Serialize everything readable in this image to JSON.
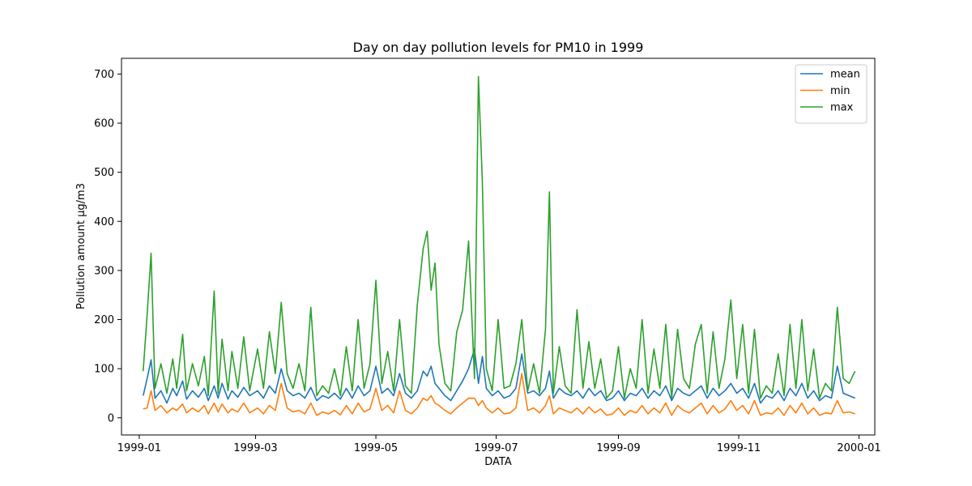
{
  "chart_data": {
    "type": "line",
    "title": "Day on day pollution levels for PM10 in 1999",
    "xlabel": "DATA",
    "ylabel": "Pollution amount µg/m3",
    "x_type": "date",
    "xlim": [
      "1998-12-23",
      "2000-01-09"
    ],
    "ylim": [
      -35,
      732
    ],
    "x_ticks": [
      {
        "date": "1999-01-01",
        "label": "1999-01"
      },
      {
        "date": "1999-03-01",
        "label": "1999-03"
      },
      {
        "date": "1999-05-01",
        "label": "1999-05"
      },
      {
        "date": "1999-07-01",
        "label": "1999-07"
      },
      {
        "date": "1999-09-01",
        "label": "1999-09"
      },
      {
        "date": "1999-11-01",
        "label": "1999-11"
      },
      {
        "date": "2000-01-01",
        "label": "2000-01"
      }
    ],
    "y_ticks": [
      0,
      100,
      200,
      300,
      400,
      500,
      600,
      700
    ],
    "grid": false,
    "legend_position": "top-right",
    "x": [
      "1999-01-03",
      "1999-01-05",
      "1999-01-07",
      "1999-01-09",
      "1999-01-12",
      "1999-01-15",
      "1999-01-18",
      "1999-01-20",
      "1999-01-23",
      "1999-01-25",
      "1999-01-28",
      "1999-01-31",
      "1999-02-03",
      "1999-02-05",
      "1999-02-08",
      "1999-02-10",
      "1999-02-12",
      "1999-02-15",
      "1999-02-17",
      "1999-02-20",
      "1999-02-23",
      "1999-02-26",
      "1999-03-02",
      "1999-03-05",
      "1999-03-08",
      "1999-03-11",
      "1999-03-14",
      "1999-03-17",
      "1999-03-20",
      "1999-03-23",
      "1999-03-26",
      "1999-03-29",
      "1999-04-01",
      "1999-04-04",
      "1999-04-07",
      "1999-04-10",
      "1999-04-13",
      "1999-04-16",
      "1999-04-19",
      "1999-04-22",
      "1999-04-25",
      "1999-04-28",
      "1999-05-01",
      "1999-05-04",
      "1999-05-07",
      "1999-05-10",
      "1999-05-13",
      "1999-05-16",
      "1999-05-19",
      "1999-05-22",
      "1999-05-25",
      "1999-05-27",
      "1999-05-29",
      "1999-05-31",
      "1999-06-02",
      "1999-06-05",
      "1999-06-08",
      "1999-06-11",
      "1999-06-14",
      "1999-06-17",
      "1999-06-20",
      "1999-06-22",
      "1999-06-24",
      "1999-06-26",
      "1999-06-29",
      "1999-07-02",
      "1999-07-05",
      "1999-07-08",
      "1999-07-11",
      "1999-07-14",
      "1999-07-17",
      "1999-07-20",
      "1999-07-23",
      "1999-07-26",
      "1999-07-28",
      "1999-07-30",
      "1999-08-02",
      "1999-08-05",
      "1999-08-08",
      "1999-08-11",
      "1999-08-14",
      "1999-08-17",
      "1999-08-20",
      "1999-08-23",
      "1999-08-26",
      "1999-08-29",
      "1999-09-01",
      "1999-09-04",
      "1999-09-07",
      "1999-09-10",
      "1999-09-13",
      "1999-09-16",
      "1999-09-19",
      "1999-09-22",
      "1999-09-25",
      "1999-09-28",
      "1999-10-01",
      "1999-10-04",
      "1999-10-07",
      "1999-10-10",
      "1999-10-13",
      "1999-10-16",
      "1999-10-19",
      "1999-10-22",
      "1999-10-25",
      "1999-10-28",
      "1999-10-31",
      "1999-11-03",
      "1999-11-06",
      "1999-11-09",
      "1999-11-12",
      "1999-11-15",
      "1999-11-18",
      "1999-11-21",
      "1999-11-24",
      "1999-11-27",
      "1999-11-30",
      "1999-12-03",
      "1999-12-06",
      "1999-12-09",
      "1999-12-12",
      "1999-12-15",
      "1999-12-18",
      "1999-12-21",
      "1999-12-24",
      "1999-12-27",
      "1999-12-30"
    ],
    "series": [
      {
        "name": "mean",
        "color": "#1f77b4",
        "values": [
          45,
          80,
          118,
          40,
          55,
          30,
          60,
          45,
          75,
          38,
          55,
          42,
          60,
          35,
          65,
          40,
          70,
          38,
          55,
          42,
          62,
          45,
          55,
          40,
          65,
          50,
          100,
          55,
          45,
          50,
          40,
          62,
          35,
          45,
          40,
          50,
          38,
          60,
          40,
          65,
          45,
          55,
          105,
          50,
          60,
          45,
          90,
          50,
          40,
          55,
          95,
          85,
          105,
          70,
          60,
          45,
          35,
          55,
          75,
          100,
          140,
          70,
          125,
          60,
          45,
          55,
          40,
          45,
          60,
          130,
          50,
          55,
          45,
          60,
          95,
          40,
          60,
          50,
          45,
          55,
          40,
          60,
          45,
          55,
          35,
          40,
          55,
          35,
          50,
          45,
          60,
          40,
          55,
          45,
          65,
          35,
          60,
          50,
          45,
          55,
          65,
          40,
          60,
          45,
          55,
          70,
          50,
          60,
          40,
          70,
          30,
          45,
          40,
          55,
          35,
          60,
          45,
          70,
          40,
          55,
          35,
          45,
          40,
          105,
          50,
          45,
          40
        ]
      },
      {
        "name": "min",
        "color": "#ff7f0e",
        "values": [
          18,
          20,
          55,
          15,
          25,
          10,
          20,
          15,
          28,
          10,
          20,
          12,
          25,
          8,
          30,
          12,
          28,
          10,
          18,
          12,
          30,
          10,
          20,
          8,
          25,
          15,
          70,
          20,
          12,
          15,
          8,
          30,
          5,
          12,
          8,
          15,
          6,
          25,
          8,
          30,
          12,
          18,
          60,
          15,
          25,
          10,
          55,
          15,
          8,
          20,
          40,
          35,
          45,
          30,
          25,
          15,
          8,
          20,
          30,
          40,
          40,
          25,
          35,
          20,
          10,
          20,
          8,
          10,
          20,
          90,
          15,
          20,
          10,
          25,
          45,
          8,
          20,
          15,
          10,
          20,
          8,
          22,
          10,
          18,
          5,
          8,
          20,
          5,
          15,
          10,
          25,
          8,
          20,
          10,
          30,
          5,
          25,
          15,
          10,
          20,
          30,
          8,
          25,
          10,
          18,
          35,
          15,
          25,
          8,
          35,
          5,
          10,
          8,
          20,
          5,
          25,
          10,
          30,
          8,
          20,
          5,
          10,
          8,
          35,
          10,
          12,
          8
        ]
      },
      {
        "name": "max",
        "color": "#2ca02c",
        "values": [
          95,
          210,
          335,
          60,
          110,
          50,
          120,
          60,
          170,
          55,
          110,
          65,
          125,
          45,
          258,
          50,
          160,
          55,
          135,
          60,
          165,
          55,
          140,
          60,
          175,
          90,
          235,
          90,
          60,
          110,
          55,
          225,
          45,
          65,
          50,
          100,
          45,
          145,
          55,
          200,
          60,
          110,
          280,
          70,
          135,
          55,
          200,
          65,
          50,
          230,
          345,
          380,
          260,
          315,
          150,
          70,
          55,
          175,
          220,
          360,
          80,
          695,
          480,
          100,
          55,
          200,
          60,
          65,
          110,
          200,
          55,
          110,
          50,
          180,
          460,
          50,
          145,
          65,
          50,
          220,
          60,
          155,
          60,
          120,
          40,
          55,
          145,
          40,
          100,
          60,
          200,
          50,
          140,
          60,
          190,
          40,
          180,
          80,
          60,
          150,
          190,
          50,
          175,
          60,
          120,
          240,
          80,
          190,
          50,
          180,
          40,
          65,
          50,
          130,
          45,
          190,
          60,
          200,
          55,
          140,
          40,
          70,
          55,
          225,
          80,
          70,
          95
        ]
      }
    ]
  }
}
